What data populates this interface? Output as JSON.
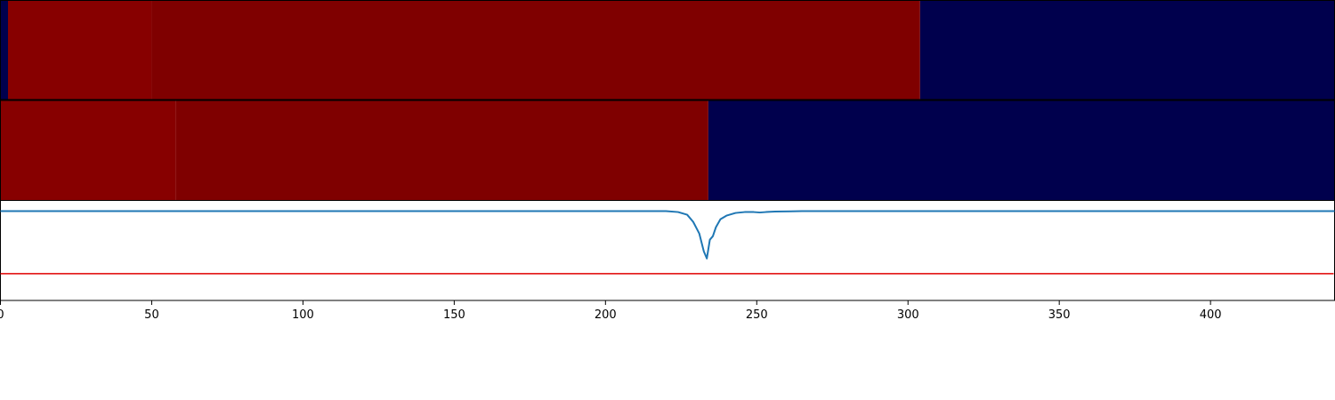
{
  "chart_data": [
    {
      "type": "heatmap",
      "row": 1,
      "x_range": [
        0,
        441
      ],
      "segments": [
        {
          "x0": 0,
          "x1": 2.5,
          "color": "#00004d"
        },
        {
          "x0": 2.5,
          "x1": 50,
          "color": "#870000"
        },
        {
          "x0": 50,
          "x1": 304,
          "color": "#7f0000"
        },
        {
          "x0": 304,
          "x1": 441,
          "color": "#00004d"
        }
      ]
    },
    {
      "type": "heatmap",
      "row": 2,
      "x_range": [
        0,
        441
      ],
      "segments": [
        {
          "x0": 0,
          "x1": 58,
          "color": "#870000"
        },
        {
          "x0": 58,
          "x1": 234,
          "color": "#7f0000"
        },
        {
          "x0": 234,
          "x1": 441,
          "color": "#00004d"
        }
      ]
    },
    {
      "type": "line",
      "xlim": [
        0,
        441
      ],
      "ylim": [
        -1.0,
        0.12
      ],
      "threshold": -0.7,
      "threshold_color": "#e00000",
      "line_color": "#1f77b4",
      "x": [
        0,
        220,
        224,
        227,
        229,
        231,
        232.5,
        233.5,
        234.5,
        235.5,
        236.5,
        238,
        240,
        243,
        246,
        249,
        251,
        253,
        256,
        265,
        441
      ],
      "y": [
        0.0,
        0.0,
        -0.01,
        -0.04,
        -0.12,
        -0.25,
        -0.45,
        -0.53,
        -0.32,
        -0.28,
        -0.18,
        -0.09,
        -0.05,
        -0.02,
        -0.01,
        -0.01,
        -0.015,
        -0.01,
        -0.005,
        0.0,
        0.0
      ],
      "xticks": [
        0,
        50,
        100,
        150,
        200,
        250,
        300,
        350,
        400
      ],
      "xtick_labels": [
        "0",
        "50",
        "100",
        "150",
        "200",
        "250",
        "300",
        "350",
        "400"
      ]
    }
  ]
}
